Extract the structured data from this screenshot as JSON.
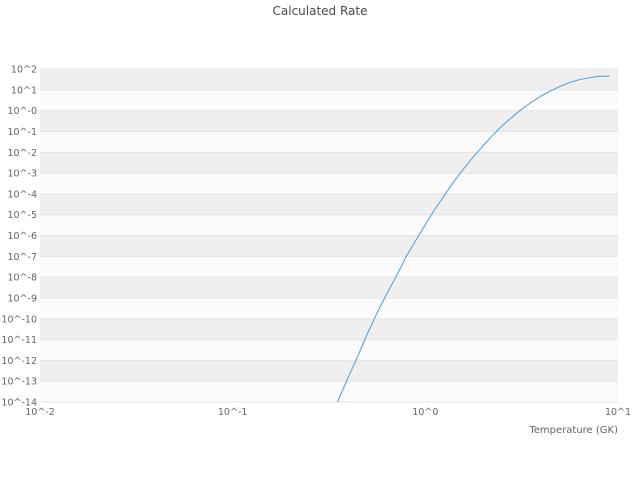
{
  "title": "Calculated Rate",
  "x_axis_label": "Temperature (GK)",
  "colors": {
    "line": "#5ba3d9",
    "stripe": "#efefef",
    "stripe_alt": "#fbfbfb",
    "gridline": "#e4e4e4",
    "tick_text": "#666666",
    "title_text": "#4a4a4a",
    "background": "#ffffff"
  },
  "chart_data": {
    "type": "line",
    "title": "Calculated Rate",
    "xlabel": "Temperature (GK)",
    "ylabel": "",
    "x_scale": "log",
    "y_scale": "log",
    "xlim": [
      0.01,
      10
    ],
    "ylim": [
      1e-14,
      100
    ],
    "x_tick_labels": [
      "10^-2",
      "10^-1",
      "10^0",
      "10^1"
    ],
    "x_tick_values": [
      -2,
      -1,
      0,
      1
    ],
    "y_tick_labels": [
      "10^2",
      "10^1",
      "10^-0",
      "10^-1",
      "10^-2",
      "10^-3",
      "10^-4",
      "10^-5",
      "10^-6",
      "10^-7",
      "10^-8",
      "10^-9",
      "10^-10",
      "10^-11",
      "10^-12",
      "10^-13",
      "10^-14"
    ],
    "y_tick_values": [
      2,
      1,
      0,
      -1,
      -2,
      -3,
      -4,
      -5,
      -6,
      -7,
      -8,
      -9,
      -10,
      -11,
      -12,
      -13,
      -14
    ],
    "grid": true,
    "legend": "none",
    "series": [
      {
        "name": "Calculated Rate",
        "x": [
          0.35,
          0.4,
          0.45,
          0.5,
          0.56,
          0.63,
          0.71,
          0.79,
          0.89,
          1.0,
          1.12,
          1.26,
          1.41,
          1.58,
          1.78,
          2.0,
          2.24,
          2.51,
          2.82,
          3.16,
          3.55,
          3.98,
          4.47,
          5.01,
          5.62,
          6.31,
          7.08,
          7.94,
          9.0
        ],
        "y": [
          1e-14,
          1.7e-13,
          1.9e-12,
          1.9e-11,
          1.8e-10,
          1.55e-09,
          1.2e-08,
          8.7e-08,
          5.6e-07,
          3.3e-06,
          1.8e-05,
          8.9e-05,
          0.0004,
          0.0016,
          0.0062,
          0.021,
          0.066,
          0.19,
          0.49,
          1.16,
          2.5,
          5.0,
          8.9,
          14.8,
          22.4,
          30.9,
          38.0,
          43.7,
          46.0
        ]
      }
    ]
  }
}
